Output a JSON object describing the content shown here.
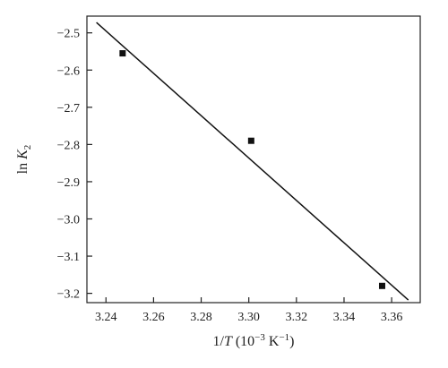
{
  "chart_data": {
    "type": "scatter",
    "title": "",
    "xlabel": {
      "prefix": "1/",
      "variable": "T",
      "units": " (10",
      "units_exp": "−3",
      "units_tail": " K",
      "units_tail_exp": "−1",
      "close": ")"
    },
    "ylabel": {
      "prefix": "ln ",
      "variable": "K",
      "subscript": "2"
    },
    "xlim": [
      3.232,
      3.372
    ],
    "ylim": [
      -3.225,
      -2.455
    ],
    "xticks": [
      3.24,
      3.26,
      3.28,
      3.3,
      3.32,
      3.34,
      3.36
    ],
    "xtick_labels": [
      "3.24",
      "3.26",
      "3.28",
      "3.30",
      "3.32",
      "3.34",
      "3.36"
    ],
    "yticks": [
      -2.5,
      -2.6,
      -2.7,
      -2.8,
      -2.9,
      -3.0,
      -3.1,
      -3.2
    ],
    "ytick_labels": [
      "−2.5",
      "−2.6",
      "−2.7",
      "−2.8",
      "−2.9",
      "−3.0",
      "−3.1",
      "−3.2"
    ],
    "series": [
      {
        "marker": "square",
        "color": "#111111",
        "points": [
          {
            "x": 3.247,
            "y": -2.555
          },
          {
            "x": 3.301,
            "y": -2.79
          },
          {
            "x": 3.356,
            "y": -3.18
          }
        ]
      }
    ],
    "fit_line": {
      "color": "#111111",
      "x": [
        3.236,
        3.367
      ],
      "y": [
        -2.472,
        -3.218
      ]
    },
    "grid": false,
    "legend": "none"
  }
}
